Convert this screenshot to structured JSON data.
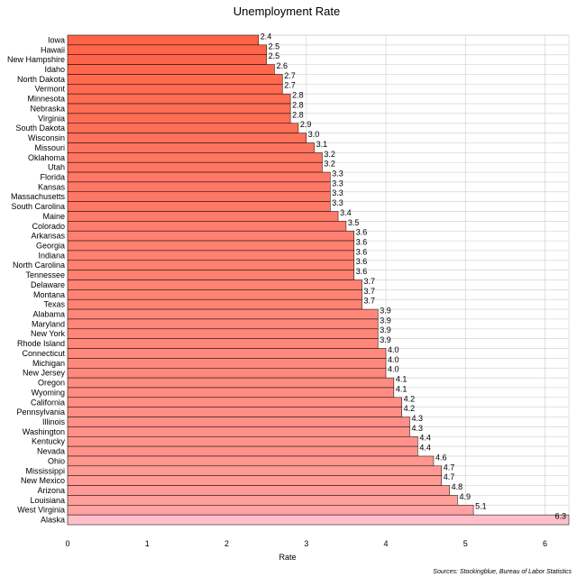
{
  "chart_data": {
    "type": "bar",
    "orientation": "horizontal",
    "title": "Unemployment Rate",
    "xlabel": "Rate",
    "ylabel": "",
    "xlim": [
      0,
      6.3
    ],
    "xticks": [
      0,
      1,
      2,
      3,
      4,
      5,
      6
    ],
    "grid": true,
    "source": "Sources: Stockingblue, Bureau of Labor Statistics",
    "categories": [
      "Iowa",
      "Hawaii",
      "New Hampshire",
      "Idaho",
      "North Dakota",
      "Vermont",
      "Minnesota",
      "Nebraska",
      "Virginia",
      "South Dakota",
      "Wisconsin",
      "Missouri",
      "Oklahoma",
      "Utah",
      "Florida",
      "Kansas",
      "Massachusetts",
      "South Carolina",
      "Maine",
      "Colorado",
      "Arkansas",
      "Georgia",
      "Indiana",
      "North Carolina",
      "Tennessee",
      "Delaware",
      "Montana",
      "Texas",
      "Alabama",
      "Maryland",
      "New York",
      "Rhode Island",
      "Connecticut",
      "Michigan",
      "New Jersey",
      "Oregon",
      "Wyoming",
      "California",
      "Pennsylvania",
      "Illinois",
      "Washington",
      "Kentucky",
      "Nevada",
      "Ohio",
      "Mississippi",
      "New Mexico",
      "Arizona",
      "Louisiana",
      "West Virginia",
      "Alaska"
    ],
    "values": [
      2.4,
      2.5,
      2.5,
      2.6,
      2.7,
      2.7,
      2.8,
      2.8,
      2.8,
      2.9,
      3.0,
      3.1,
      3.2,
      3.2,
      3.3,
      3.3,
      3.3,
      3.3,
      3.4,
      3.5,
      3.6,
      3.6,
      3.6,
      3.6,
      3.6,
      3.7,
      3.7,
      3.7,
      3.9,
      3.9,
      3.9,
      3.9,
      4.0,
      4.0,
      4.0,
      4.1,
      4.1,
      4.2,
      4.2,
      4.3,
      4.3,
      4.4,
      4.4,
      4.6,
      4.7,
      4.7,
      4.8,
      4.9,
      5.1,
      6.3
    ],
    "value_labels": [
      "2.4",
      "2.5",
      "2.5",
      "2.6",
      "2.7",
      "2.7",
      "2.8",
      "2.8",
      "2.8",
      "2.9",
      "3.0",
      "3.1",
      "3.2",
      "3.2",
      "3.3",
      "3.3",
      "3.3",
      "3.3",
      "3.4",
      "3.5",
      "3.6",
      "3.6",
      "3.6",
      "3.6",
      "3.6",
      "3.7",
      "3.7",
      "3.7",
      "3.9",
      "3.9",
      "3.9",
      "3.9",
      "4.0",
      "4.0",
      "4.0",
      "4.1",
      "4.1",
      "4.2",
      "4.2",
      "4.3",
      "4.3",
      "4.4",
      "4.4",
      "4.6",
      "4.7",
      "4.7",
      "4.8",
      "4.9",
      "5.1",
      "6.3"
    ],
    "colors": {
      "bar_low": "#ff6347",
      "bar_high": "#ffc0cb",
      "bar_stroke": "#000000",
      "grid": "#d3d3d3"
    }
  }
}
